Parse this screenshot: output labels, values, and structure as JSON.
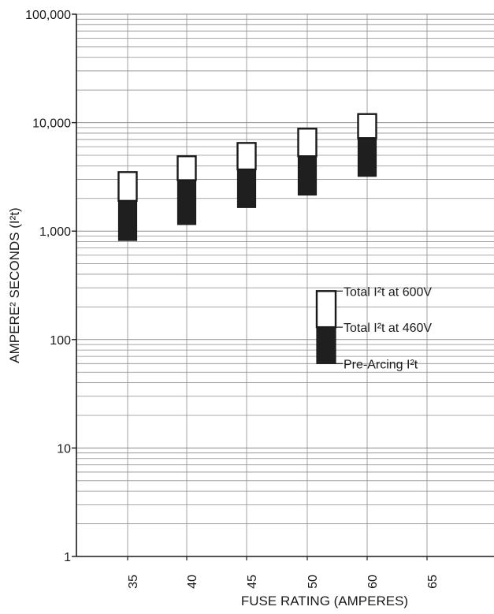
{
  "chart_data": {
    "type": "bar",
    "title": "",
    "xlabel": "FUSE RATING (AMPERES)",
    "ylabel": "AMPERE² SECONDS (I²t)",
    "yscale": "log",
    "ylim": [
      1,
      100000
    ],
    "y_ticks": [
      "1",
      "10",
      "100",
      "1,000",
      "10,000",
      "100,000"
    ],
    "categories": [
      "35",
      "40",
      "45",
      "50",
      "60",
      "65"
    ],
    "grid": true,
    "series": [
      {
        "name": "Pre-Arcing I²t",
        "values": [
          820,
          1150,
          1650,
          2150,
          3200,
          null
        ]
      },
      {
        "name": "Total I²t at 460V",
        "values": [
          1900,
          2950,
          3700,
          4900,
          7200,
          null
        ]
      },
      {
        "name": "Total I²t at 600V",
        "values": [
          3500,
          4900,
          6500,
          8800,
          12000,
          null
        ]
      }
    ],
    "legend": {
      "placement": "center-right",
      "example_values": {
        "pre_arcing": 60,
        "total_460v": 130,
        "total_600v": 280
      }
    },
    "colors": {
      "pre_total_band": "#1f1f1f",
      "total_band": "#ffffff",
      "outline": "#1a1a1a",
      "grid": "#8c8c8c"
    }
  }
}
